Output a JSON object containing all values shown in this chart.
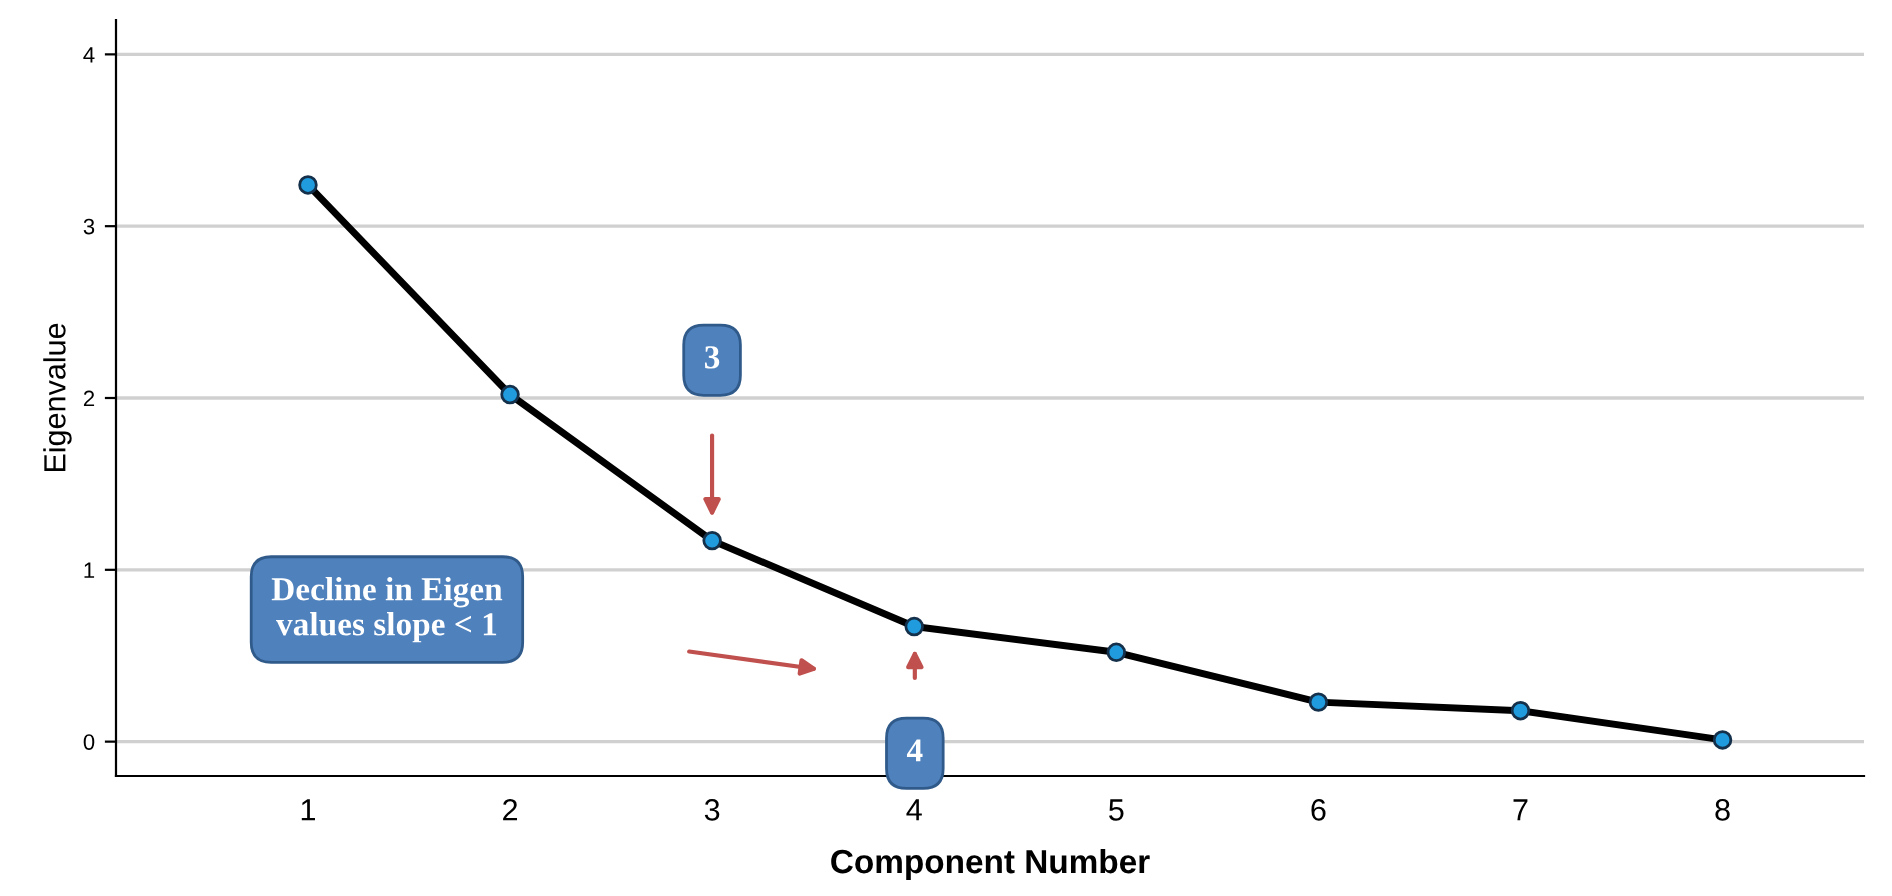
{
  "chart_data": {
    "type": "line",
    "xlabel": "Component Number",
    "ylabel": "Eigenvalue",
    "x": [
      1,
      2,
      3,
      4,
      5,
      6,
      7,
      8
    ],
    "series": [
      {
        "color": "#000000",
        "values": [
          3.24,
          2.02,
          1.17,
          0.67,
          0.52,
          0.23,
          0.18,
          0.01
        ]
      }
    ],
    "xlim": [
      0.05,
      8.7
    ],
    "ylim": [
      -0.2,
      4.2
    ],
    "xticks": [
      1,
      2,
      3,
      4,
      5,
      6,
      7,
      8
    ],
    "yticks": [
      0,
      1,
      2,
      3,
      4
    ],
    "grid": "y",
    "marker": "circle",
    "line_style": "solid",
    "annotations": [
      "3",
      "4",
      "Decline in Eigen\nvalues slope < 1"
    ]
  }
}
